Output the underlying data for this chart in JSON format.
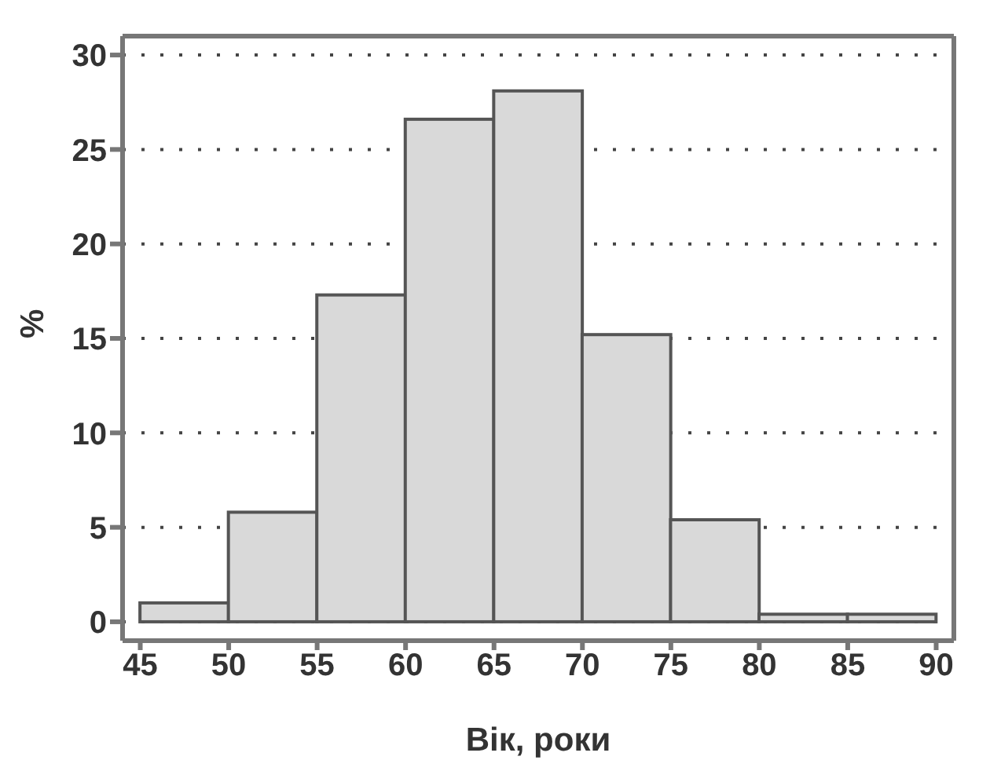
{
  "chart_data": {
    "type": "histogram",
    "xlabel": "Вік, роки",
    "ylabel": "%",
    "bins": [
      45,
      50,
      55,
      60,
      65,
      70,
      75,
      80,
      85,
      90
    ],
    "values": [
      1.0,
      5.8,
      17.3,
      26.6,
      28.1,
      15.2,
      5.4,
      0.4,
      0.4
    ],
    "color": "#d9d9d9",
    "xlim": [
      44,
      91
    ],
    "xticks": [
      45,
      50,
      55,
      60,
      65,
      70,
      75,
      80,
      85,
      90
    ],
    "ylim": [
      -1,
      31
    ],
    "yticks": [
      0,
      5,
      10,
      15,
      20,
      25,
      30
    ],
    "grid": "y"
  }
}
